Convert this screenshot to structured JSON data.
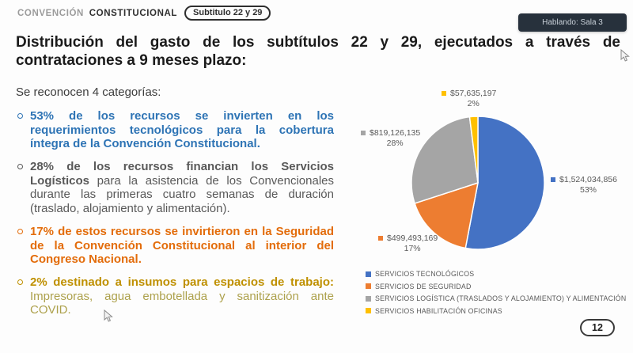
{
  "header": {
    "brand_light": "CONVENCIÓN",
    "brand_bold": "CONSTITUCIONAL",
    "badge": "Subtitulo 22 y 29",
    "speaking_badge": "Hablando: Sala 3"
  },
  "title": "Distribución del gasto de los subtítulos 22 y 29, ejecutados a través de contrataciones a 9 meses plazo:",
  "intro": "Se reconocen 4 categorías:",
  "bullets": [
    {
      "bold": "53% de los recursos se invierten en los requerimientos tecnológicos para la cobertura íntegra de la Convención Constitucional.",
      "regular": "",
      "color": "#2E74B5",
      "regular_color": "#2E74B5"
    },
    {
      "bold": "28% de los recursos financian los Servicios Logísticos",
      "regular": "para la asistencia de los Convencionales durante las primeras cuatro semanas de duración (traslado, alojamiento y alimentación).",
      "color": "#595959",
      "regular_color": "#595959"
    },
    {
      "bold": "17% de estos recursos se invirtieron en la Seguridad de la Convención Constitucional al interior del Congreso Nacional.",
      "regular": "",
      "color": "#E36C0A",
      "regular_color": "#E36C0A"
    },
    {
      "bold": "2% destinado a insumos para espacios de trabajo:",
      "regular": "Impresoras, agua embotellada y sanitización ante COVID.",
      "color": "#BF9000",
      "regular_color": "#ADA14C"
    }
  ],
  "chart_data": {
    "type": "pie",
    "start_angle_deg": -90,
    "direction": "clockwise",
    "legend_position": "bottom-left",
    "slices": [
      {
        "legend": "SERVICIOS TECNOLÓGICOS",
        "value": 1524034856,
        "value_label": "$1,524,034,856",
        "pct": 53,
        "pct_label": "53%",
        "color": "#4472C4"
      },
      {
        "legend": "SERVICIOS DE SEGURIDAD",
        "value": 499493169,
        "value_label": "$499,493,169",
        "pct": 17,
        "pct_label": "17%",
        "color": "#ED7D31"
      },
      {
        "legend": "SERVICIOS LOGÍSTICA (TRASLADOS Y ALOJAMIENTO) Y ALIMENTACIÓN",
        "value": 819126135,
        "value_label": "$819,126,135",
        "pct": 28,
        "pct_label": "28%",
        "color": "#A5A5A5"
      },
      {
        "legend": "SERVICIOS HABILITACIÓN OFICINAS",
        "value": 57635197,
        "value_label": "$57,635,197",
        "pct": 2,
        "pct_label": "2%",
        "color": "#FFC000"
      }
    ]
  },
  "page_number": "12"
}
